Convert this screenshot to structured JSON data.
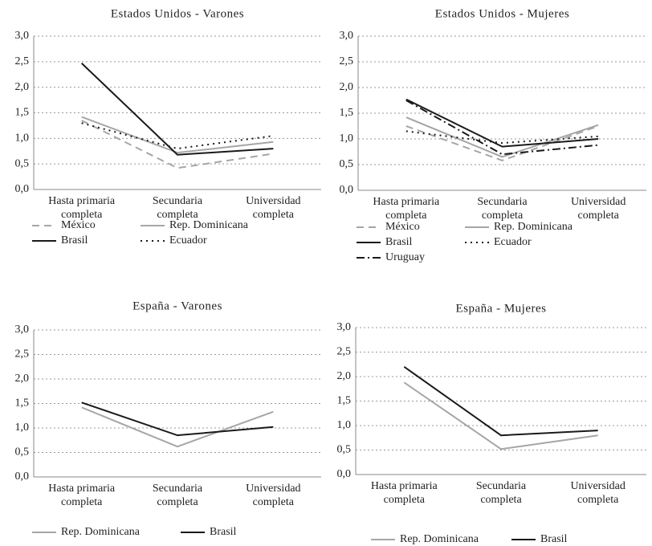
{
  "chart_data": [
    {
      "type": "line",
      "title": "Estados Unidos - Varones",
      "categories": [
        "Hasta primaria completa",
        "Secundaria completa",
        "Universidad completa"
      ],
      "ylim": [
        0,
        3
      ],
      "yticks": [
        {
          "value": 0,
          "label": "0,0"
        },
        {
          "value": 0.5,
          "label": "0,5"
        },
        {
          "value": 1,
          "label": "1,0"
        },
        {
          "value": 1.5,
          "label": "1,5"
        },
        {
          "value": 2,
          "label": "2,0"
        },
        {
          "value": 2.5,
          "label": "2,5"
        },
        {
          "value": 3,
          "label": "3,0"
        }
      ],
      "grid": true,
      "series": [
        {
          "name": "México",
          "color": "#a6a6a6",
          "dash": "dashed",
          "values": [
            1.35,
            0.42,
            0.7
          ]
        },
        {
          "name": "Rep. Dominicana",
          "color": "#a6a6a6",
          "dash": "solid",
          "values": [
            1.42,
            0.72,
            0.93
          ]
        },
        {
          "name": "Brasil",
          "color": "#1a1a1a",
          "dash": "solid",
          "values": [
            2.47,
            0.68,
            0.8
          ]
        },
        {
          "name": "Ecuador",
          "color": "#1a1a1a",
          "dash": "dotted",
          "values": [
            1.3,
            0.8,
            1.05
          ]
        }
      ]
    },
    {
      "type": "line",
      "title": "Estados Unidos - Mujeres",
      "categories": [
        "Hasta primaria completa",
        "Secundaria completa",
        "Universidad completa"
      ],
      "ylim": [
        0,
        3
      ],
      "yticks": [
        {
          "value": 0,
          "label": "0,0"
        },
        {
          "value": 0.5,
          "label": "0,5"
        },
        {
          "value": 1,
          "label": "1,0"
        },
        {
          "value": 1.5,
          "label": "1,5"
        },
        {
          "value": 2,
          "label": "2,0"
        },
        {
          "value": 2.5,
          "label": "2,5"
        },
        {
          "value": 3,
          "label": "3,0"
        }
      ],
      "grid": true,
      "series": [
        {
          "name": "México",
          "color": "#a6a6a6",
          "dash": "dashed",
          "values": [
            1.25,
            0.58,
            1.25
          ]
        },
        {
          "name": "Rep. Dominicana",
          "color": "#a6a6a6",
          "dash": "solid",
          "values": [
            1.42,
            0.65,
            1.27
          ]
        },
        {
          "name": "Brasil",
          "color": "#1a1a1a",
          "dash": "solid",
          "values": [
            1.77,
            0.85,
            1.0
          ]
        },
        {
          "name": "Ecuador",
          "color": "#1a1a1a",
          "dash": "dotted",
          "values": [
            1.15,
            0.92,
            1.05
          ]
        },
        {
          "name": "Uruguay",
          "color": "#1a1a1a",
          "dash": "dashdot",
          "values": [
            1.75,
            0.7,
            0.88
          ]
        }
      ]
    },
    {
      "type": "line",
      "title": "España - Varones",
      "categories": [
        "Hasta primaria completa",
        "Secundaria completa",
        "Universidad completa"
      ],
      "ylim": [
        0,
        3
      ],
      "yticks": [
        {
          "value": 0,
          "label": "0,0"
        },
        {
          "value": 0.5,
          "label": "0,5"
        },
        {
          "value": 1,
          "label": "1,0"
        },
        {
          "value": 1.5,
          "label": "1,5"
        },
        {
          "value": 2,
          "label": "2,0"
        },
        {
          "value": 2.5,
          "label": "2,5"
        },
        {
          "value": 3,
          "label": "3,0"
        }
      ],
      "grid": true,
      "series": [
        {
          "name": "Rep. Dominicana",
          "color": "#a6a6a6",
          "dash": "solid",
          "values": [
            1.42,
            0.62,
            1.33
          ]
        },
        {
          "name": "Brasil",
          "color": "#1a1a1a",
          "dash": "solid",
          "values": [
            1.52,
            0.85,
            1.02
          ]
        }
      ]
    },
    {
      "type": "line",
      "title": "España - Mujeres",
      "categories": [
        "Hasta primaria completa",
        "Secundaria completa",
        "Universidad completa"
      ],
      "ylim": [
        0,
        3
      ],
      "yticks": [
        {
          "value": 0,
          "label": "0,0"
        },
        {
          "value": 0.5,
          "label": "0,5"
        },
        {
          "value": 1,
          "label": "1,0"
        },
        {
          "value": 1.5,
          "label": "1,5"
        },
        {
          "value": 2,
          "label": "2,0"
        },
        {
          "value": 2.5,
          "label": "2,5"
        },
        {
          "value": 3,
          "label": "3,0"
        }
      ],
      "grid": true,
      "series": [
        {
          "name": "Rep. Dominicana",
          "color": "#a6a6a6",
          "dash": "solid",
          "values": [
            1.88,
            0.52,
            0.8
          ]
        },
        {
          "name": "Brasil",
          "color": "#1a1a1a",
          "dash": "solid",
          "values": [
            2.2,
            0.8,
            0.9
          ]
        }
      ]
    }
  ]
}
